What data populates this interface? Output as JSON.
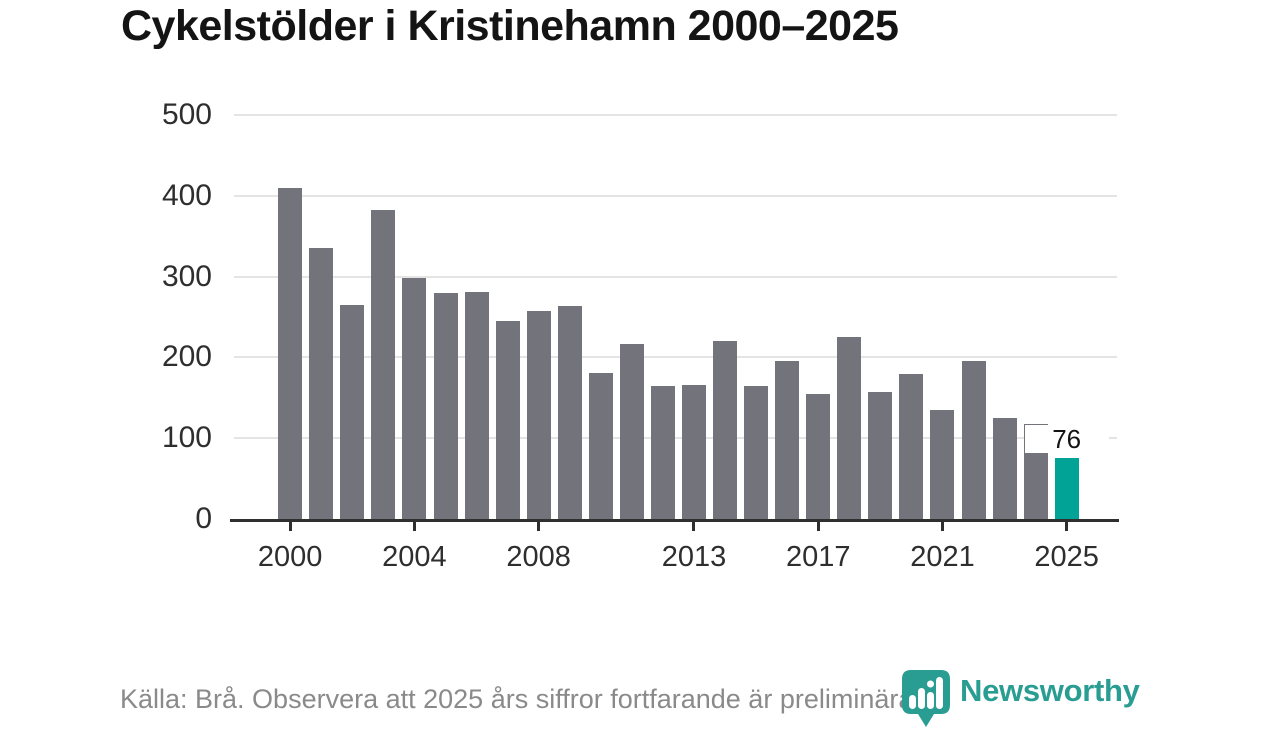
{
  "title": "Cykelstölder i Kristinehamn 2000–2025",
  "footer": {
    "source_note": "Källa: Brå. Observera att 2025 års siffror fortfarande är preliminära."
  },
  "logo": {
    "name": "Newsworthy",
    "icon": "newsworthy-pin-chart-icon",
    "color": "#2a9d92"
  },
  "colors": {
    "bar": "#73737b",
    "highlight": "#00a396",
    "axis": "#2f2f2f",
    "gridline": "#e4e4e4",
    "title_text": "#141414",
    "tick_text": "#2e2e2e",
    "footer_text": "#8a8a8a"
  },
  "chart_data": {
    "type": "bar",
    "title": "Cykelstölder i Kristinehamn 2000–2025",
    "x": [
      2000,
      2001,
      2002,
      2003,
      2004,
      2005,
      2006,
      2007,
      2008,
      2009,
      2010,
      2011,
      2012,
      2013,
      2014,
      2015,
      2016,
      2017,
      2018,
      2019,
      2020,
      2021,
      2022,
      2023,
      2024,
      2025
    ],
    "values": [
      410,
      335,
      265,
      382,
      298,
      280,
      281,
      245,
      258,
      264,
      181,
      217,
      165,
      166,
      220,
      164,
      196,
      155,
      225,
      157,
      179,
      135,
      195,
      125,
      118,
      76
    ],
    "highlight_x": 2025,
    "annotation": {
      "x": 2025,
      "label": "76"
    },
    "xlabel": "",
    "ylabel": "",
    "ylim": [
      0,
      500
    ],
    "yticks": [
      0,
      100,
      200,
      300,
      400,
      500
    ],
    "xticks": [
      2000,
      2004,
      2008,
      2013,
      2017,
      2021,
      2025
    ],
    "grid": "horizontal",
    "legend": "none"
  }
}
